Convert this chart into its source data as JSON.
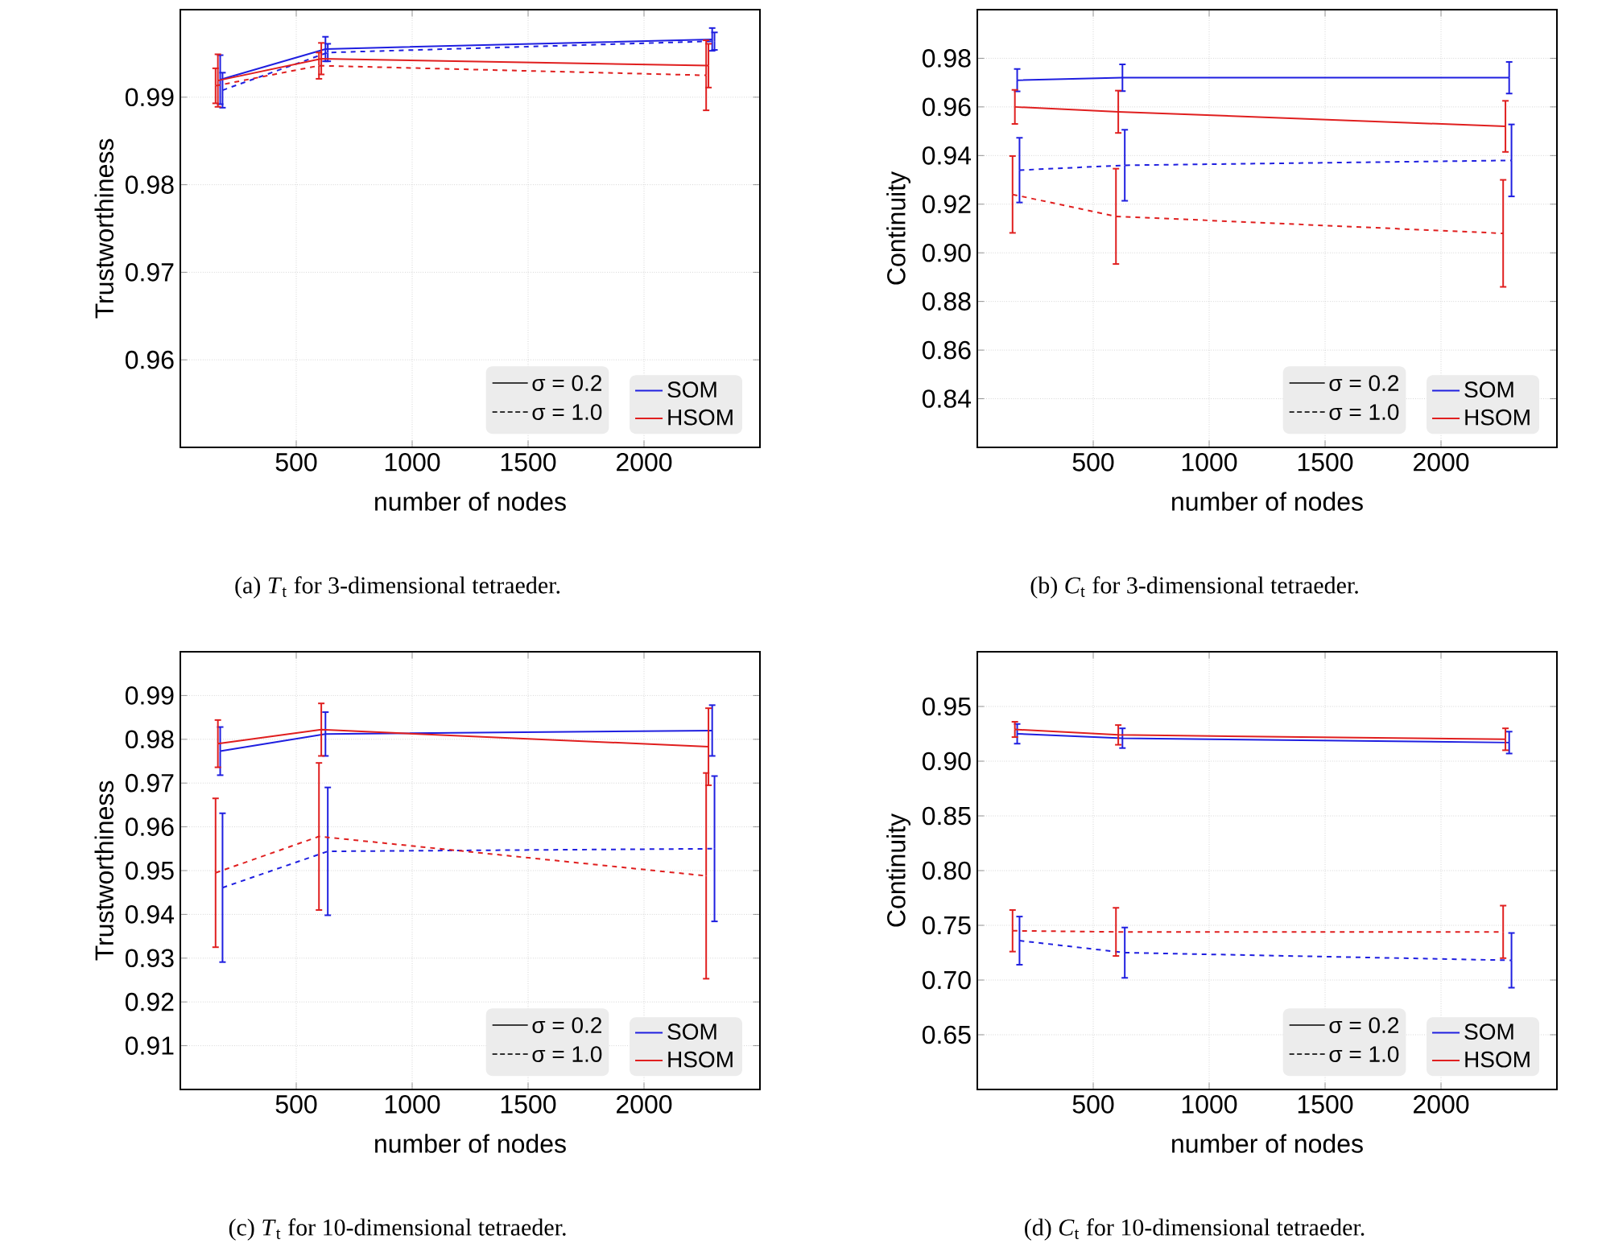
{
  "chart_data": [
    {
      "type": "line",
      "xlabel": "number of nodes",
      "ylabel": "Trustworthiness",
      "xlim": [
        0,
        2500
      ],
      "ylim": [
        0.95,
        1.0
      ],
      "xticks": [
        500,
        1000,
        1500,
        2000
      ],
      "yticks": [
        0.96,
        0.97,
        0.98,
        0.99
      ],
      "grid": true,
      "legend": "bottom right",
      "annotations": [
        "(a) *T*$_{t}$ for 3-dimensional tetraeder.",
        "σ = 0.2",
        "σ = 1.0"
      ],
      "series": [
        {
          "name": "SOM",
          "color": "#1f1fe0",
          "line_style": "solid",
          "x": [
            172,
            626,
            2294
          ],
          "values": [
            0.992,
            0.9955,
            0.9966
          ],
          "errors": [
            0.0028,
            0.0014,
            0.0013
          ]
        },
        {
          "color": "#1f1fe0",
          "line_style": "dashed",
          "x": [
            182,
            636,
            2304
          ],
          "values": [
            0.9908,
            0.9951,
            0.9964
          ],
          "errors": [
            0.002,
            0.001,
            0.001
          ]
        },
        {
          "name": "HSOM",
          "color": "#e01f1f",
          "line_style": "solid",
          "x": [
            162,
            608,
            2278
          ],
          "values": [
            0.9919,
            0.9944,
            0.9936
          ],
          "errors": [
            0.003,
            0.0018,
            0.0025
          ]
        },
        {
          "color": "#e01f1f",
          "line_style": "dashed",
          "x": [
            152,
            598,
            2268
          ],
          "values": [
            0.9913,
            0.9936,
            0.9925
          ],
          "errors": [
            0.002,
            0.0015,
            0.004
          ]
        }
      ]
    },
    {
      "type": "line",
      "xlabel": "number of nodes",
      "ylabel": "Continuity",
      "xlim": [
        0,
        2500
      ],
      "ylim": [
        0.82,
        1.0
      ],
      "xticks": [
        500,
        1000,
        1500,
        2000
      ],
      "yticks": [
        0.84,
        0.86,
        0.88,
        {
          "value": 0.9,
          "label": "0.90"
        },
        0.92,
        0.94,
        0.96,
        0.98
      ],
      "grid": true,
      "legend": "bottom right",
      "annotations": [
        "(b) *C*$_{t}$ for 3-dimensional tetraeder.",
        "σ = 0.2",
        "σ = 1.0"
      ],
      "series": [
        {
          "name": "SOM",
          "color": "#1f1fe0",
          "line_style": "solid",
          "x": [
            172,
            626,
            2294
          ],
          "values": [
            0.971,
            0.972,
            0.972
          ],
          "errors": [
            0.0046,
            0.0055,
            0.0065
          ]
        },
        {
          "color": "#1f1fe0",
          "line_style": "dashed",
          "x": [
            182,
            636,
            2304
          ],
          "values": [
            0.934,
            0.936,
            0.938
          ],
          "errors": [
            0.0133,
            0.0146,
            0.0148
          ]
        },
        {
          "name": "HSOM",
          "color": "#e01f1f",
          "line_style": "solid",
          "x": [
            162,
            608,
            2278
          ],
          "values": [
            0.96,
            0.958,
            0.952
          ],
          "errors": [
            0.007,
            0.0087,
            0.0105
          ]
        },
        {
          "color": "#e01f1f",
          "line_style": "dashed",
          "x": [
            152,
            598,
            2268
          ],
          "values": [
            0.924,
            0.915,
            0.908
          ],
          "errors": [
            0.0158,
            0.0196,
            0.022
          ]
        }
      ]
    },
    {
      "type": "line",
      "xlabel": "number of nodes",
      "ylabel": "Trustworthiness",
      "xlim": [
        0,
        2500
      ],
      "ylim": [
        0.9,
        1.0
      ],
      "xticks": [
        500,
        1000,
        1500,
        2000
      ],
      "yticks": [
        0.91,
        0.92,
        0.93,
        0.94,
        0.95,
        0.96,
        0.97,
        0.98,
        0.99
      ],
      "grid": true,
      "legend": "bottom right",
      "annotations": [
        "(c) *T*$_{t}$ for 10-dimensional tetraeder.",
        "σ = 0.2",
        "σ = 1.0"
      ],
      "series": [
        {
          "name": "SOM",
          "color": "#1f1fe0",
          "line_style": "solid",
          "x": [
            172,
            626,
            2294
          ],
          "values": [
            0.9773,
            0.9812,
            0.982
          ],
          "errors": [
            0.0055,
            0.005,
            0.0058
          ]
        },
        {
          "color": "#1f1fe0",
          "line_style": "dashed",
          "x": [
            182,
            636,
            2304
          ],
          "values": [
            0.9461,
            0.9544,
            0.955
          ],
          "errors": [
            0.017,
            0.0146,
            0.0166
          ]
        },
        {
          "name": "HSOM",
          "color": "#e01f1f",
          "line_style": "solid",
          "x": [
            162,
            608,
            2278
          ],
          "values": [
            0.979,
            0.9822,
            0.9783
          ],
          "errors": [
            0.0054,
            0.006,
            0.0088
          ]
        },
        {
          "color": "#e01f1f",
          "line_style": "dashed",
          "x": [
            152,
            598,
            2268
          ],
          "values": [
            0.9495,
            0.9578,
            0.9488
          ],
          "errors": [
            0.017,
            0.0168,
            0.0235
          ]
        }
      ]
    },
    {
      "type": "line",
      "xlabel": "number of nodes",
      "ylabel": "Continuity",
      "xlim": [
        0,
        2500
      ],
      "ylim": [
        0.6,
        1.0
      ],
      "xticks": [
        500,
        1000,
        1500,
        2000
      ],
      "yticks": [
        0.65,
        {
          "value": 0.7,
          "label": "0.70"
        },
        0.75,
        {
          "value": 0.8,
          "label": "0.80"
        },
        0.85,
        {
          "value": 0.9,
          "label": "0.90"
        },
        0.95
      ],
      "grid": true,
      "legend": "bottom right",
      "annotations": [
        "(d) *C*$_{t}$ for 10-dimensional tetraeder.",
        "σ = 0.2",
        "σ = 1.0"
      ],
      "series": [
        {
          "name": "SOM",
          "color": "#1f1fe0",
          "line_style": "solid",
          "x": [
            172,
            626,
            2294
          ],
          "values": [
            0.925,
            0.921,
            0.917
          ],
          "errors": [
            0.009,
            0.009,
            0.01
          ]
        },
        {
          "color": "#1f1fe0",
          "line_style": "dashed",
          "x": [
            182,
            636,
            2304
          ],
          "values": [
            0.736,
            0.725,
            0.718
          ],
          "errors": [
            0.022,
            0.023,
            0.025
          ]
        },
        {
          "name": "HSOM",
          "color": "#e01f1f",
          "line_style": "solid",
          "x": [
            162,
            608,
            2278
          ],
          "values": [
            0.929,
            0.924,
            0.92
          ],
          "errors": [
            0.007,
            0.009,
            0.01
          ]
        },
        {
          "color": "#e01f1f",
          "line_style": "dashed",
          "x": [
            152,
            598,
            2268
          ],
          "values": [
            0.745,
            0.744,
            0.744
          ],
          "errors": [
            0.019,
            0.022,
            0.024
          ]
        }
      ]
    }
  ]
}
